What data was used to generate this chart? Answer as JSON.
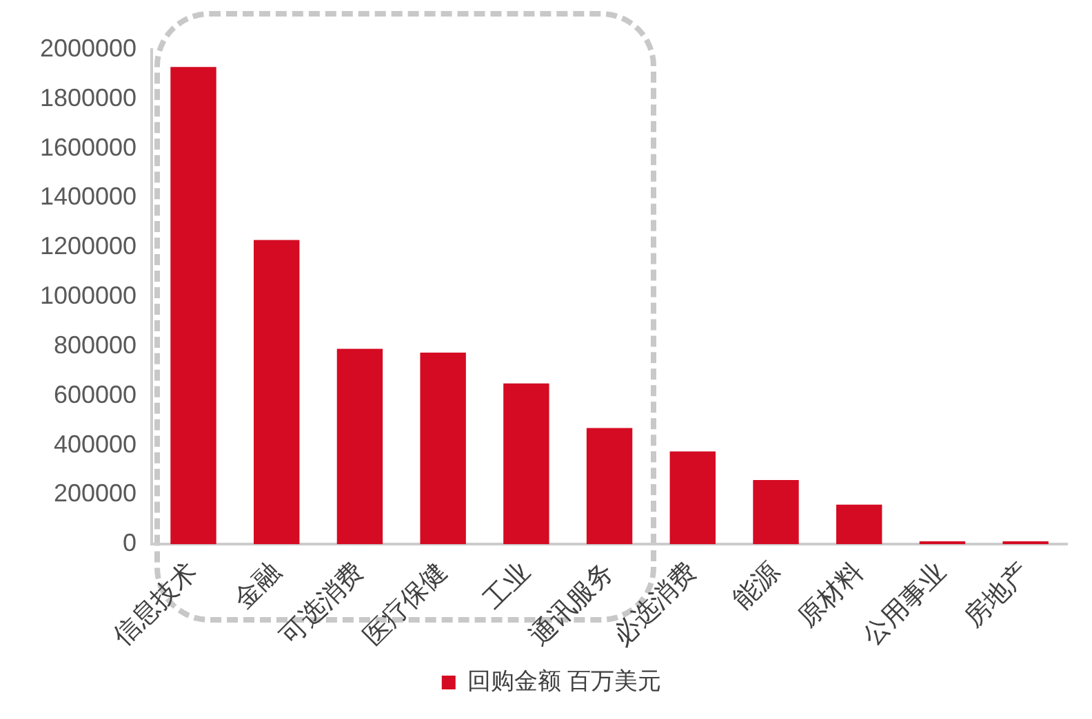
{
  "chart_data": {
    "type": "bar",
    "categories": [
      "信息技术",
      "金融",
      "可选消费",
      "医疗保健",
      "工业",
      "通讯服务",
      "必选消费",
      "能源",
      "原材料",
      "公用事业",
      "房地产"
    ],
    "series": [
      {
        "name": "回购金额 百万美元",
        "color": "#d40b22",
        "values": [
          1930000,
          1230000,
          790000,
          775000,
          650000,
          470000,
          375000,
          260000,
          160000,
          12000,
          12000
        ]
      }
    ],
    "ylim": [
      0,
      2000000
    ],
    "yticks": [
      0,
      200000,
      400000,
      600000,
      800000,
      1000000,
      1200000,
      1400000,
      1600000,
      1800000,
      2000000
    ],
    "grid": false,
    "legend": "bottom"
  }
}
